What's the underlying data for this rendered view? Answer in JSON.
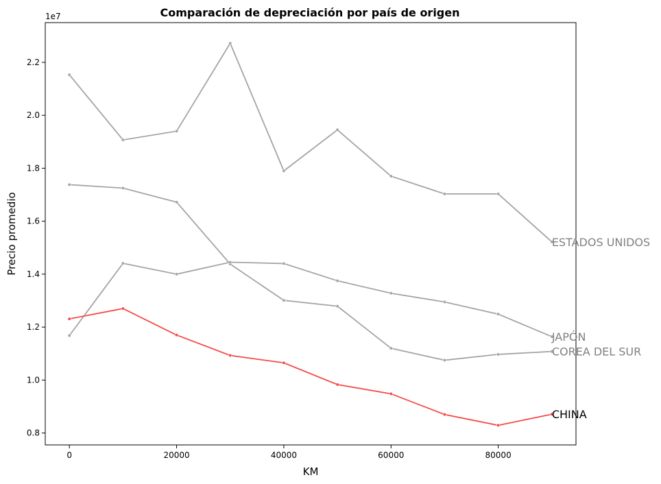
{
  "chart_data": {
    "type": "line",
    "title": "Comparación de depreciación por país de origen",
    "xlabel": "KM",
    "ylabel": "Precio promedio",
    "y_offset_label": "1e7",
    "xlim": [
      -4500,
      94500
    ],
    "ylim": [
      7550000,
      23500000
    ],
    "x_ticks": [
      0,
      20000,
      40000,
      60000,
      80000
    ],
    "y_ticks": [
      8000000,
      10000000,
      12000000,
      14000000,
      16000000,
      18000000,
      20000000,
      22000000
    ],
    "y_tick_labels": [
      "0.8",
      "1.0",
      "1.2",
      "1.4",
      "1.6",
      "1.8",
      "2.0",
      "2.2"
    ],
    "grid": false,
    "x": [
      0,
      10000,
      20000,
      30000,
      40000,
      50000,
      60000,
      70000,
      80000,
      90000
    ],
    "series": [
      {
        "name": "ESTADOS UNIDOS",
        "color": "#a4a4a4",
        "label_color": "#808080",
        "values": [
          21530000,
          19070000,
          19400000,
          22720000,
          17900000,
          19450000,
          17700000,
          17030000,
          17030000,
          15220000
        ]
      },
      {
        "name": "JAPÓN",
        "color": "#a4a4a4",
        "label_color": "#808080",
        "values": [
          17380000,
          17250000,
          16720000,
          14380000,
          13010000,
          12790000,
          11200000,
          10750000,
          10970000,
          11080000
        ]
      },
      {
        "name": "COREA DEL SUR",
        "color": "#a4a4a4",
        "label_color": "#808080",
        "values": [
          11680000,
          14410000,
          14000000,
          14450000,
          14400000,
          13750000,
          13280000,
          12950000,
          12490000,
          11640000
        ]
      },
      {
        "name": "CHINA",
        "color": "#f44a47",
        "label_color": "#000000",
        "values": [
          12310000,
          12700000,
          11700000,
          10930000,
          10650000,
          9830000,
          9480000,
          8700000,
          8290000,
          8710000
        ]
      }
    ],
    "end_labels": [
      {
        "text": "ESTADOS UNIDOS",
        "x": 90000,
        "y": 15220000,
        "color": "#808080"
      },
      {
        "text": "JAPÓN",
        "x": 90000,
        "y": 11640000,
        "color": "#808080"
      },
      {
        "text": "COREA DEL SUR",
        "x": 90000,
        "y": 11080000,
        "color": "#808080"
      },
      {
        "text": "CHINA",
        "x": 90000,
        "y": 8710000,
        "color": "#000000"
      }
    ]
  }
}
